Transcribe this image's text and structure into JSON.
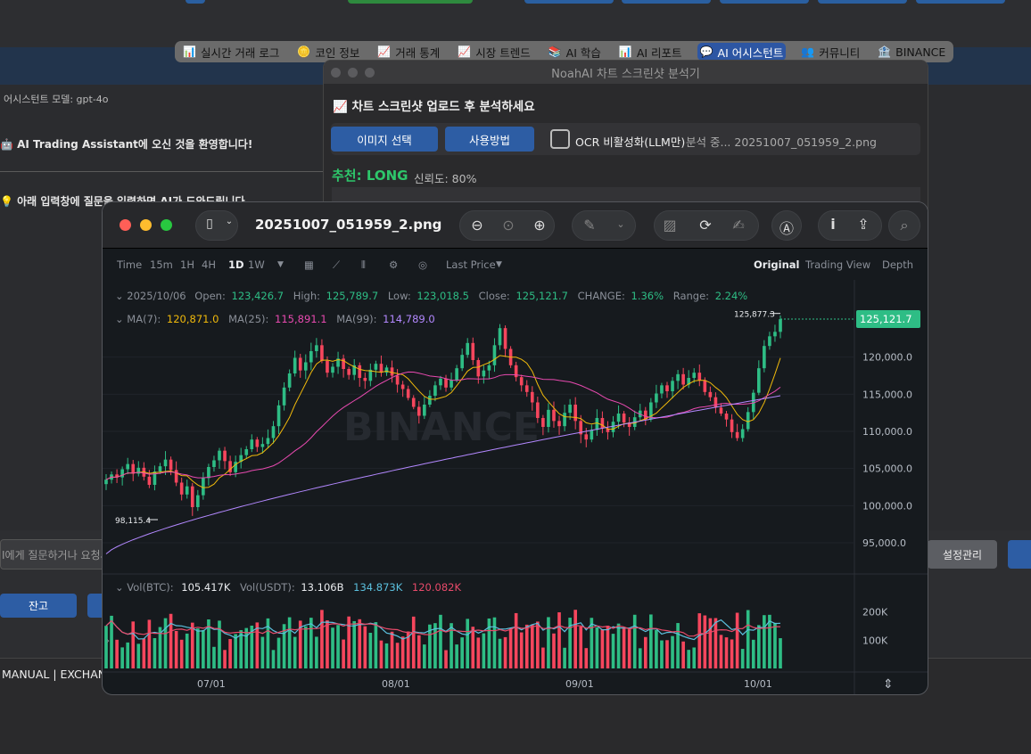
{
  "tabs": [
    {
      "icon": "📊",
      "label": "실시간 거래 로그",
      "active": false
    },
    {
      "icon": "🪙",
      "label": "코인 정보",
      "active": false
    },
    {
      "icon": "📈",
      "label": "거래 통계",
      "active": false
    },
    {
      "icon": "📈",
      "label": "시장 트렌드",
      "active": false
    },
    {
      "icon": "📚",
      "label": "AI 학습",
      "active": false
    },
    {
      "icon": "📊",
      "label": "AI 리포트",
      "active": false
    },
    {
      "icon": "💬",
      "label": "AI 어시스턴트",
      "active": true
    },
    {
      "icon": "👥",
      "label": "커뮤니티",
      "active": false
    },
    {
      "icon": "🏦",
      "label": "BINANCE",
      "active": false
    }
  ],
  "background": {
    "model_label": "어시스턴트 모델: gpt-4o",
    "welcome": "🤖 AI Trading Assistant에 오신 것을 환영합니다!",
    "hint": "💡 아래 입력창에 질문을 입력하면 AI가 도와드립니다",
    "input_placeholder": "I에게 질문하거나 요청사",
    "settings_button": "설정관리",
    "balance_button": "잔고",
    "status_text": "MANUAL | EXCHAN"
  },
  "analyzer": {
    "title": "NoahAI 차트 스크린샷 분석기",
    "heading": "📈 차트 스크린샷 업로드 후 분석하세요",
    "select_button": "이미지 선택",
    "howto_button": "사용방법",
    "ocr_label": "OCR 비활성화(LLM만)",
    "status": "분석 중... 20251007_051959_2.png",
    "recommend": "추천: LONG",
    "confidence": "신뢰도: 80%"
  },
  "preview": {
    "filename": "20251007_051959_2.png",
    "timeframes": [
      "Time",
      "15m",
      "1H",
      "4H",
      "1D",
      "1W"
    ],
    "active_timeframe": "1D",
    "price_type": "Last Price",
    "views": [
      "Original",
      "Trading View",
      "Depth"
    ],
    "active_view": "Original"
  },
  "chart_data": {
    "type": "candlestick",
    "symbol_exchange": "BINANCE",
    "ohlc": {
      "date": "2025/10/06",
      "open_label": "Open:",
      "open": "123,426.7",
      "high_label": "High:",
      "high": "125,789.7",
      "low_label": "Low:",
      "low": "123,018.5",
      "close_label": "Close:",
      "close": "125,121.7",
      "change_label": "CHANGE:",
      "change": "1.36%",
      "range_label": "Range:",
      "range": "2.24%"
    },
    "ma": [
      {
        "label": "MA(7):",
        "value": "120,871.0",
        "color": "#f0b90b"
      },
      {
        "label": "MA(25):",
        "value": "115,891.1",
        "color": "#e84ab0"
      },
      {
        "label": "MA(99):",
        "value": "114,789.0",
        "color": "#b388ff"
      }
    ],
    "y_ticks": [
      "125,121.7",
      "120,000.0",
      "115,000.0",
      "110,000.0",
      "105,000.0",
      "100,000.0",
      "95,000.0"
    ],
    "ylim": [
      92000,
      128000
    ],
    "current_price": "125,121.7",
    "high_marker": "125,877.3",
    "low_marker": "98,115.4",
    "x_ticks": [
      "07/01",
      "08/01",
      "09/01",
      "10/01"
    ],
    "volume": {
      "label_vol_btc": "Vol(BTC):",
      "vol_btc": "105.417K",
      "label_vol_usdt": "Vol(USDT):",
      "vol_usdt": "13.106B",
      "ma1": "134.873K",
      "ma2": "120.082K",
      "y_ticks": [
        "200K",
        "100K"
      ]
    },
    "close_series": [
      103500,
      104200,
      103800,
      104900,
      105600,
      104300,
      105100,
      103900,
      102800,
      104600,
      105300,
      106200,
      104800,
      103100,
      101500,
      102600,
      99800,
      101400,
      103700,
      105200,
      106100,
      107400,
      106000,
      104500,
      105900,
      106800,
      107600,
      108900,
      107900,
      108300,
      109100,
      110700,
      113500,
      115900,
      117800,
      119900,
      118200,
      119300,
      120800,
      121600,
      119500,
      117900,
      118700,
      119800,
      118400,
      117600,
      118900,
      117200,
      116800,
      118300,
      119100,
      117900,
      118600,
      117500,
      116300,
      115700,
      114500,
      113300,
      112100,
      113600,
      114800,
      116200,
      117100,
      115900,
      116900,
      118500,
      120300,
      121900,
      119600,
      117400,
      118200,
      118900,
      121600,
      123900,
      121100,
      118900,
      117300,
      116200,
      115300,
      113900,
      111800,
      110600,
      112900,
      111400,
      110700,
      112500,
      113600,
      111400,
      109600,
      108900,
      110200,
      111800,
      110400,
      109900,
      111300,
      112400,
      111200,
      110600,
      111900,
      112800,
      111600,
      113900,
      115100,
      116200,
      115400,
      116800,
      117700,
      116300,
      117200,
      117900,
      116900,
      115300,
      114600,
      113200,
      112400,
      111600,
      109900,
      109100,
      110300,
      112600,
      115200,
      118500,
      121500,
      122800,
      123400,
      125100
    ]
  }
}
